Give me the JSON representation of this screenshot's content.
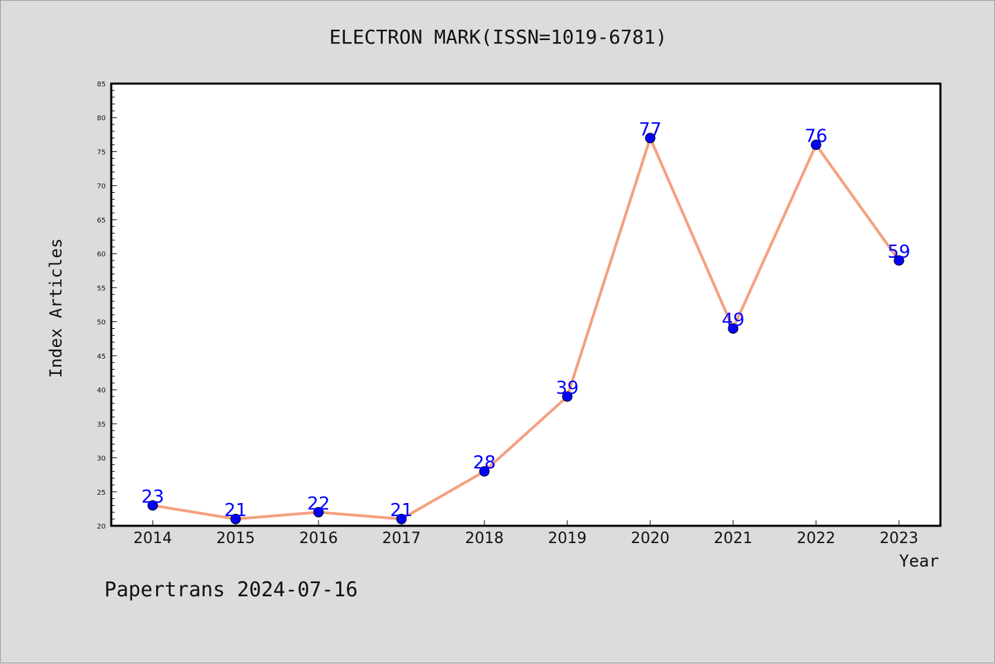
{
  "chart_data": {
    "type": "line",
    "title": "ELECTRON MARK(ISSN=1019-6781)",
    "xlabel": "Year",
    "ylabel": "Index Articles",
    "categories": [
      "2014",
      "2015",
      "2016",
      "2017",
      "2018",
      "2019",
      "2020",
      "2021",
      "2022",
      "2023"
    ],
    "series": [
      {
        "values": [
          23,
          21,
          22,
          21,
          28,
          39,
          77,
          49,
          76,
          59
        ]
      }
    ],
    "ylim": [
      20,
      85
    ],
    "y_ticks": [
      20,
      25,
      30,
      35,
      40,
      45,
      50,
      55,
      60,
      65,
      70,
      75,
      80,
      85
    ],
    "grid": false,
    "line_color": "#f4a07f",
    "marker_color": "#0000ff",
    "label_color": "#0000ff"
  },
  "footer": "Papertrans 2024-07-16"
}
